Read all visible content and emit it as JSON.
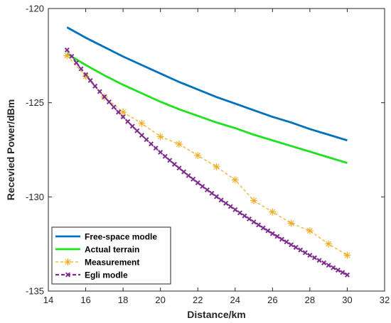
{
  "chart_data": {
    "type": "line",
    "xlabel": "Distance/km",
    "ylabel": "Recevied Power/dBm",
    "xlim": [
      14,
      32
    ],
    "ylim": [
      -135,
      -120
    ],
    "xticks": [
      14,
      16,
      18,
      20,
      22,
      24,
      26,
      28,
      30,
      32
    ],
    "yticks": [
      -135,
      -130,
      -125,
      -120
    ],
    "grid": false,
    "legend_position": "bottom-left",
    "series": [
      {
        "name": "Free-space modle",
        "color": "#0072BD",
        "style": "solid",
        "marker": "none",
        "x": [
          15,
          16,
          17,
          18,
          19,
          20,
          21,
          22,
          23,
          24,
          25,
          26,
          27,
          28,
          29,
          30
        ],
        "y": [
          -121.0,
          -121.55,
          -122.05,
          -122.55,
          -123.0,
          -123.45,
          -123.9,
          -124.3,
          -124.7,
          -125.05,
          -125.4,
          -125.75,
          -126.05,
          -126.4,
          -126.7,
          -127.0
        ]
      },
      {
        "name": "Actual terrain",
        "color": "#1FE21F",
        "style": "solid",
        "marker": "none",
        "x": [
          15,
          16,
          17,
          18,
          19,
          20,
          21,
          22,
          23,
          24,
          25,
          26,
          27,
          28,
          29,
          30
        ],
        "y": [
          -122.4,
          -123.0,
          -123.55,
          -124.05,
          -124.5,
          -124.95,
          -125.35,
          -125.7,
          -126.05,
          -126.35,
          -126.7,
          -127.0,
          -127.3,
          -127.6,
          -127.9,
          -128.2
        ]
      },
      {
        "name": "Measurement",
        "color": "#F0AA1E",
        "style": "dashed",
        "marker": "asterisk",
        "x": [
          15,
          16,
          17,
          18,
          19,
          20,
          21,
          22,
          23,
          24,
          25,
          26,
          27,
          28,
          29,
          30
        ],
        "y": [
          -122.5,
          -123.6,
          -124.7,
          -125.5,
          -126.1,
          -126.8,
          -127.2,
          -127.8,
          -128.4,
          -129.1,
          -130.2,
          -130.8,
          -131.4,
          -131.8,
          -132.5,
          -133.1
        ]
      },
      {
        "name": "Egli modle",
        "color": "#7E2F8E",
        "style": "dashed",
        "marker": "x",
        "x": [
          15.0,
          15.25,
          15.5,
          15.75,
          16.0,
          16.25,
          16.5,
          16.75,
          17.0,
          17.25,
          17.5,
          17.75,
          18.0,
          18.25,
          18.5,
          18.75,
          19.0,
          19.25,
          19.5,
          19.75,
          20.0,
          20.25,
          20.5,
          20.75,
          21.0,
          21.25,
          21.5,
          21.75,
          22.0,
          22.25,
          22.5,
          22.75,
          23.0,
          23.25,
          23.5,
          23.75,
          24.0,
          24.25,
          24.5,
          24.75,
          25.0,
          25.25,
          25.5,
          25.75,
          26.0,
          26.25,
          26.5,
          26.75,
          27.0,
          27.25,
          27.5,
          27.75,
          28.0,
          28.25,
          28.5,
          28.75,
          29.0,
          29.25,
          29.5,
          29.75,
          30.0
        ],
        "y": [
          -122.2,
          -122.54,
          -122.88,
          -123.2,
          -123.51,
          -123.82,
          -124.12,
          -124.41,
          -124.69,
          -124.96,
          -125.23,
          -125.5,
          -125.75,
          -126.0,
          -126.25,
          -126.49,
          -126.73,
          -126.96,
          -127.19,
          -127.41,
          -127.63,
          -127.85,
          -128.06,
          -128.27,
          -128.47,
          -128.67,
          -128.87,
          -129.06,
          -129.25,
          -129.44,
          -129.63,
          -129.81,
          -129.99,
          -130.17,
          -130.34,
          -130.51,
          -130.68,
          -130.85,
          -131.01,
          -131.17,
          -131.33,
          -131.49,
          -131.65,
          -131.8,
          -131.95,
          -132.1,
          -132.25,
          -132.39,
          -132.54,
          -132.68,
          -132.82,
          -132.96,
          -133.1,
          -133.23,
          -133.37,
          -133.5,
          -133.63,
          -133.76,
          -133.89,
          -134.01,
          -134.14
        ]
      }
    ]
  }
}
